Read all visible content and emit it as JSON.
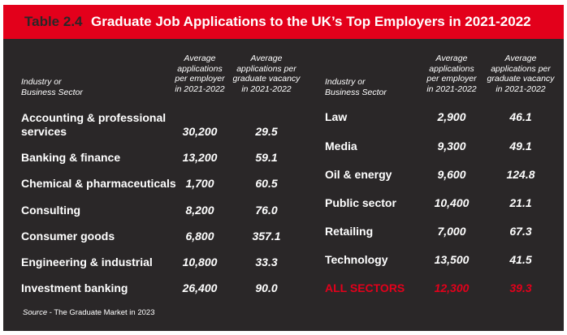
{
  "table": {
    "number": "Table 2.4",
    "title": "Graduate Job Applications to the UK’s Top Employers in 2021-2022",
    "headers": {
      "industry": [
        "Industry or",
        "Business Sector"
      ],
      "per_employer": [
        "Average",
        "applications",
        "per employer",
        "in 2021-2022"
      ],
      "per_vacancy": [
        "Average",
        "applications per",
        "graduate vacancy",
        "in 2021-2022"
      ]
    },
    "left_rows": [
      {
        "sector": "Accounting & professional services",
        "per_employer": "30,200",
        "per_vacancy": "29.5"
      },
      {
        "sector": "Banking & finance",
        "per_employer": "13,200",
        "per_vacancy": "59.1"
      },
      {
        "sector": "Chemical & pharmaceuticals",
        "per_employer": "1,700",
        "per_vacancy": "60.5"
      },
      {
        "sector": "Consulting",
        "per_employer": "8,200",
        "per_vacancy": "76.0"
      },
      {
        "sector": "Consumer goods",
        "per_employer": "6,800",
        "per_vacancy": "357.1"
      },
      {
        "sector": "Engineering & industrial",
        "per_employer": "10,800",
        "per_vacancy": "33.3"
      },
      {
        "sector": "Investment banking",
        "per_employer": "26,400",
        "per_vacancy": "90.0"
      }
    ],
    "right_rows": [
      {
        "sector": "Law",
        "per_employer": "2,900",
        "per_vacancy": "46.1"
      },
      {
        "sector": "Media",
        "per_employer": "9,300",
        "per_vacancy": "49.1"
      },
      {
        "sector": "Oil & energy",
        "per_employer": "9,600",
        "per_vacancy": "124.8"
      },
      {
        "sector": "Public sector",
        "per_employer": "10,400",
        "per_vacancy": "21.1"
      },
      {
        "sector": "Retailing",
        "per_employer": "7,000",
        "per_vacancy": "67.3"
      },
      {
        "sector": "Technology",
        "per_employer": "13,500",
        "per_vacancy": "41.5"
      }
    ],
    "total_row": {
      "sector": "ALL SECTORS",
      "per_employer": "12,300",
      "per_vacancy": "39.3"
    },
    "source_label": "Source",
    "source_text": " - The Graduate Market in 2023"
  },
  "colors": {
    "accent": "#e3001b",
    "background": "#2a2728",
    "text": "#ffffff"
  }
}
